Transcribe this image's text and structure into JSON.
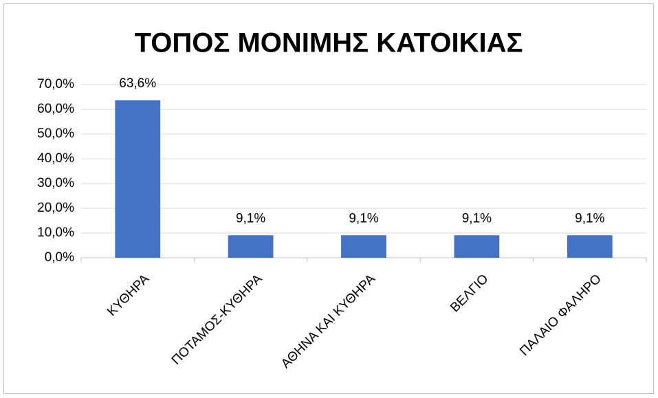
{
  "chart_data": {
    "type": "bar",
    "title": "ΤΟΠΟΣ ΜΟΝΙΜΗΣ ΚΑΤΟΙΚΙΑΣ",
    "categories": [
      "ΚΥΘΗΡΑ",
      "ΠΟΤΑΜΟΣ-ΚΥΘΗΡΑ",
      "ΑΘΗΝΑ ΚΑΙ ΚΥΘΗΡΑ",
      "ΒΕΛΓΙΟ",
      "ΠΑΛΑΙΟ ΦΑΛΗΡΟ"
    ],
    "values": [
      63.6,
      9.1,
      9.1,
      9.1,
      9.1
    ],
    "value_labels": [
      "63,6%",
      "9,1%",
      "9,1%",
      "9,1%",
      "9,1%"
    ],
    "color": "#4472c4",
    "ylim": [
      0,
      70
    ],
    "yticks": [
      {
        "value": 0,
        "label": "0,0%"
      },
      {
        "value": 10,
        "label": "10,0%"
      },
      {
        "value": 20,
        "label": "20,0%"
      },
      {
        "value": 30,
        "label": "30,0%"
      },
      {
        "value": 40,
        "label": "40,0%"
      },
      {
        "value": 50,
        "label": "50,0%"
      },
      {
        "value": 60,
        "label": "60,0%"
      },
      {
        "value": 70,
        "label": "70,0%"
      }
    ],
    "grid": true
  }
}
